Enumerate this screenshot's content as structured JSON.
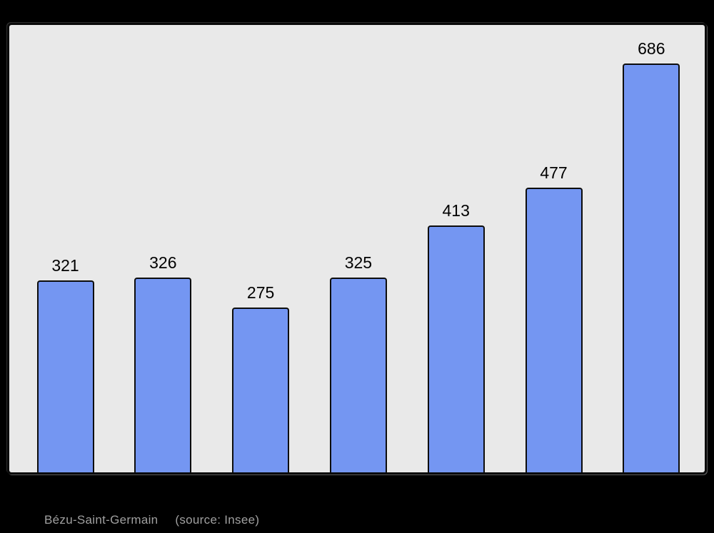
{
  "page": {
    "background": "#000000"
  },
  "caption": {
    "title": "Bézu-Saint-Germain",
    "source": "(source: Insee)"
  },
  "chart_data": {
    "type": "bar",
    "values": [
      321,
      326,
      275,
      325,
      413,
      477,
      686
    ],
    "value_labels": [
      "321",
      "326",
      "275",
      "325",
      "413",
      "477",
      "686"
    ],
    "title": "Bézu-Saint-Germain",
    "subtitle": "(source: Insee)",
    "xlabel": "",
    "ylabel": "",
    "ylim": [
      0,
      686
    ],
    "grid": false,
    "legend_position": "none",
    "bar_color": "#7496f2",
    "bar_border_color": "#0d0d0d",
    "panel_background": "#e9e9e9",
    "panel_border_color": "#0a0a0a",
    "value_label_color": "#000000",
    "caption_color": "#a0a0a0"
  }
}
